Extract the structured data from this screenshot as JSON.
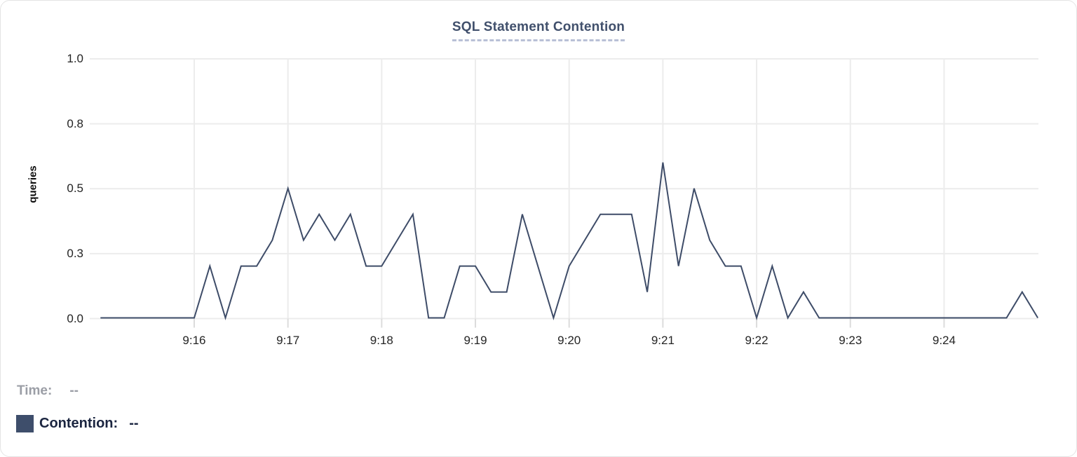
{
  "chart_data": {
    "type": "line",
    "title": "SQL Statement Contention",
    "xlabel": "",
    "ylabel": "queries",
    "ylim": [
      0,
      1
    ],
    "grid": true,
    "legend_position": "bottom-left",
    "x_tick_labels": [
      "9:16",
      "9:17",
      "9:18",
      "9:19",
      "9:20",
      "9:21",
      "9:22",
      "9:23",
      "9:24"
    ],
    "y_tick_labels": [
      "0.0",
      "0.3",
      "0.5",
      "0.8",
      "1.0"
    ],
    "y_tick_values": [
      0,
      0.25,
      0.5,
      0.75,
      1.0
    ],
    "x_range": {
      "start": "9:15:00",
      "end": "9:25:00",
      "interval_seconds": 10
    },
    "series": [
      {
        "name": "Contention",
        "color": "#3e4c68",
        "values": [
          0,
          0,
          0,
          0,
          0,
          0,
          0,
          0.2,
          0,
          0.2,
          0.2,
          0.3,
          0.5,
          0.3,
          0.4,
          0.3,
          0.4,
          0.2,
          0.2,
          0.3,
          0.4,
          0,
          0,
          0.2,
          0.2,
          0.1,
          0.1,
          0.4,
          0.2,
          0,
          0.2,
          0.3,
          0.4,
          0.4,
          0.4,
          0.1,
          0.6,
          0.2,
          0.5,
          0.3,
          0.2,
          0.2,
          0,
          0.2,
          0,
          0.1,
          0,
          0,
          0,
          0,
          0,
          0,
          0,
          0,
          0,
          0,
          0,
          0,
          0,
          0.1,
          0
        ]
      }
    ]
  },
  "legend": {
    "time_label": "Time:",
    "time_value": "--",
    "contention_label": "Contention:",
    "contention_value": "--",
    "swatch_color": "#3e4e6b"
  },
  "colors": {
    "line": "#3e4c68",
    "grid": "#ececec",
    "tick_mark": "#dcdcdc",
    "title": "#41506c",
    "title_underline": "#b9c0d6",
    "axis_text": "#242424",
    "muted_text": "#9b9ea6",
    "legend_text": "#1b2540",
    "card_border": "#e4e4e4"
  }
}
